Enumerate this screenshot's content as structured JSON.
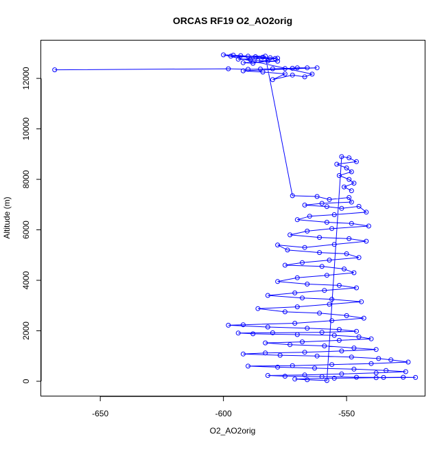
{
  "chart_data": {
    "type": "scatter",
    "mode": "lines+markers",
    "title": "ORCAS RF19 O2_AO2orig",
    "xlabel": "O2_AO2orig",
    "ylabel": "Altitude (m)",
    "xlim": [
      -674,
      -518
    ],
    "ylim": [
      -600,
      13500
    ],
    "xticks": [
      -650,
      -600,
      -550
    ],
    "yticks": [
      0,
      2000,
      4000,
      6000,
      8000,
      10000,
      12000
    ],
    "xtick_labels": [
      "-650",
      "-600",
      "-550"
    ],
    "ytick_labels": [
      "0",
      "2000",
      "4000",
      "6000",
      "8000",
      "10000",
      "12000"
    ],
    "grid": false,
    "series": [
      {
        "color": "#0000ff",
        "marker": "open-circle",
        "points": [
          [
            -668.5,
            12340
          ],
          [
            -598,
            12380
          ],
          [
            -590,
            12360
          ],
          [
            -580,
            12380
          ],
          [
            -572,
            12400
          ],
          [
            -566,
            12420
          ],
          [
            -570,
            12420
          ],
          [
            -575,
            12390
          ],
          [
            -585,
            12370
          ],
          [
            -562,
            12420
          ],
          [
            -592,
            12300
          ],
          [
            -584,
            12250
          ],
          [
            -575,
            12180
          ],
          [
            -580,
            11950
          ],
          [
            -572,
            12130
          ],
          [
            -567,
            12060
          ],
          [
            -564,
            12170
          ],
          [
            -600,
            12930
          ],
          [
            -596,
            12920
          ],
          [
            -593,
            12900
          ],
          [
            -590,
            12880
          ],
          [
            -587,
            12860
          ],
          [
            -584,
            12840
          ],
          [
            -581,
            12820
          ],
          [
            -578,
            12800
          ],
          [
            -594,
            12760
          ],
          [
            -589,
            12740
          ],
          [
            -586,
            12710
          ],
          [
            -582,
            12690
          ],
          [
            -578,
            12680
          ],
          [
            -592,
            12620
          ],
          [
            -588,
            12600
          ],
          [
            -579,
            12790
          ],
          [
            -597,
            12880
          ],
          [
            -583,
            12880
          ],
          [
            -572,
            7350
          ],
          [
            -562,
            7320
          ],
          [
            -557,
            7200
          ],
          [
            -549,
            7280
          ],
          [
            -548,
            7100
          ],
          [
            -560,
            7050
          ],
          [
            -567,
            6980
          ],
          [
            -558,
            6920
          ],
          [
            -552,
            6850
          ],
          [
            -545,
            6930
          ],
          [
            -542,
            6700
          ],
          [
            -555,
            6600
          ],
          [
            -565,
            6540
          ],
          [
            -570,
            6400
          ],
          [
            -558,
            6300
          ],
          [
            -548,
            6250
          ],
          [
            -541,
            6150
          ],
          [
            -556,
            6050
          ],
          [
            -566,
            5950
          ],
          [
            -573,
            5800
          ],
          [
            -561,
            5700
          ],
          [
            -549,
            5650
          ],
          [
            -542,
            5550
          ],
          [
            -555,
            5420
          ],
          [
            -567,
            5300
          ],
          [
            -578,
            5400
          ],
          [
            -574,
            5200
          ],
          [
            -561,
            5100
          ],
          [
            -550,
            5050
          ],
          [
            -545,
            4900
          ],
          [
            -557,
            4800
          ],
          [
            -568,
            4700
          ],
          [
            -575,
            4600
          ],
          [
            -560,
            4550
          ],
          [
            -551,
            4450
          ],
          [
            -547,
            4300
          ],
          [
            -558,
            4200
          ],
          [
            -570,
            4100
          ],
          [
            -578,
            3950
          ],
          [
            -566,
            3850
          ],
          [
            -553,
            3800
          ],
          [
            -546,
            3700
          ],
          [
            -559,
            3600
          ],
          [
            -571,
            3500
          ],
          [
            -582,
            3400
          ],
          [
            -568,
            3300
          ],
          [
            -556,
            3250
          ],
          [
            -544,
            3150
          ],
          [
            -557,
            3050
          ],
          [
            -570,
            2950
          ],
          [
            -586,
            2880
          ],
          [
            -575,
            2750
          ],
          [
            -561,
            2700
          ],
          [
            -550,
            2600
          ],
          [
            -543,
            2500
          ],
          [
            -556,
            2400
          ],
          [
            -571,
            2300
          ],
          [
            -592,
            2240
          ],
          [
            -598,
            2220
          ],
          [
            -582,
            2150
          ],
          [
            -566,
            2100
          ],
          [
            -553,
            2050
          ],
          [
            -546,
            1980
          ],
          [
            -560,
            1940
          ],
          [
            -580,
            1920
          ],
          [
            -594,
            1910
          ],
          [
            -588,
            1880
          ],
          [
            -570,
            1850
          ],
          [
            -555,
            1820
          ],
          [
            -545,
            1760
          ],
          [
            -540,
            1680
          ],
          [
            -553,
            1620
          ],
          [
            -568,
            1560
          ],
          [
            -583,
            1520
          ],
          [
            -573,
            1450
          ],
          [
            -559,
            1400
          ],
          [
            -547,
            1320
          ],
          [
            -538,
            1260
          ],
          [
            -552,
            1200
          ],
          [
            -567,
            1150
          ],
          [
            -583,
            1120
          ],
          [
            -592,
            1080
          ],
          [
            -577,
            1030
          ],
          [
            -562,
            1000
          ],
          [
            -548,
            960
          ],
          [
            -537,
            900
          ],
          [
            -532,
            850
          ],
          [
            -525,
            760
          ],
          [
            -540,
            700
          ],
          [
            -556,
            660
          ],
          [
            -572,
            620
          ],
          [
            -590,
            600
          ],
          [
            -578,
            560
          ],
          [
            -563,
            520
          ],
          [
            -547,
            480
          ],
          [
            -534,
            430
          ],
          [
            -526,
            380
          ],
          [
            -538,
            330
          ],
          [
            -552,
            290
          ],
          [
            -567,
            250
          ],
          [
            -582,
            230
          ],
          [
            -575,
            200
          ],
          [
            -560,
            180
          ],
          [
            -546,
            160
          ],
          [
            -535,
            150
          ],
          [
            -527,
            160
          ],
          [
            -522,
            150
          ],
          [
            -538,
            140
          ],
          [
            -555,
            120
          ],
          [
            -571,
            90
          ],
          [
            -566,
            60
          ],
          [
            -558,
            30
          ],
          [
            -552,
            8900
          ],
          [
            -549,
            8850
          ],
          [
            -546,
            8700
          ],
          [
            -554,
            8600
          ],
          [
            -550,
            8450
          ],
          [
            -548,
            8300
          ],
          [
            -553,
            8150
          ],
          [
            -549,
            8000
          ],
          [
            -547,
            7850
          ],
          [
            -551,
            7700
          ],
          [
            -548,
            7550
          ]
        ]
      }
    ]
  }
}
